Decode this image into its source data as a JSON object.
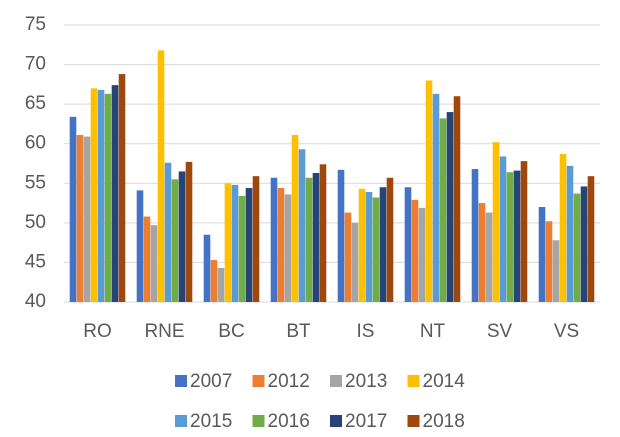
{
  "chart_data": {
    "type": "bar",
    "categories": [
      "RO",
      "RNE",
      "BC",
      "BT",
      "IS",
      "NT",
      "SV",
      "VS"
    ],
    "series": [
      {
        "name": "2007",
        "color": "#4472c4",
        "values": [
          63.4,
          54.1,
          48.5,
          55.7,
          56.7,
          54.5,
          56.8,
          52
        ]
      },
      {
        "name": "2012",
        "color": "#ed7d31",
        "values": [
          61.1,
          50.8,
          45.3,
          54.4,
          51.3,
          52.9,
          52.5,
          50.2
        ]
      },
      {
        "name": "2013",
        "color": "#a5a5a5",
        "values": [
          60.9,
          49.7,
          44.3,
          53.6,
          50,
          51.9,
          51.3,
          47.8
        ]
      },
      {
        "name": "2014",
        "color": "#ffc000",
        "values": [
          67,
          71.8,
          55,
          61.1,
          54.3,
          68,
          60.2,
          58.7
        ]
      },
      {
        "name": "2015",
        "color": "#5b9bd5",
        "values": [
          66.8,
          57.6,
          54.8,
          59.3,
          53.9,
          66.3,
          58.4,
          57.2
        ]
      },
      {
        "name": "2016",
        "color": "#70ad47",
        "values": [
          66.3,
          55.5,
          53.4,
          55.7,
          53.2,
          63.2,
          56.4,
          53.7
        ]
      },
      {
        "name": "2017",
        "color": "#264478",
        "values": [
          67.4,
          56.5,
          54.4,
          56.3,
          54.5,
          64,
          56.6,
          54.6
        ]
      },
      {
        "name": "2018",
        "color": "#9e480e",
        "values": [
          68.8,
          57.7,
          55.9,
          57.4,
          55.7,
          66,
          57.8,
          55.9
        ]
      }
    ],
    "ylim": [
      40,
      75
    ],
    "yticks": [
      40,
      45,
      50,
      55,
      60,
      65,
      70,
      75
    ],
    "grid": true,
    "legend": "bottom"
  }
}
